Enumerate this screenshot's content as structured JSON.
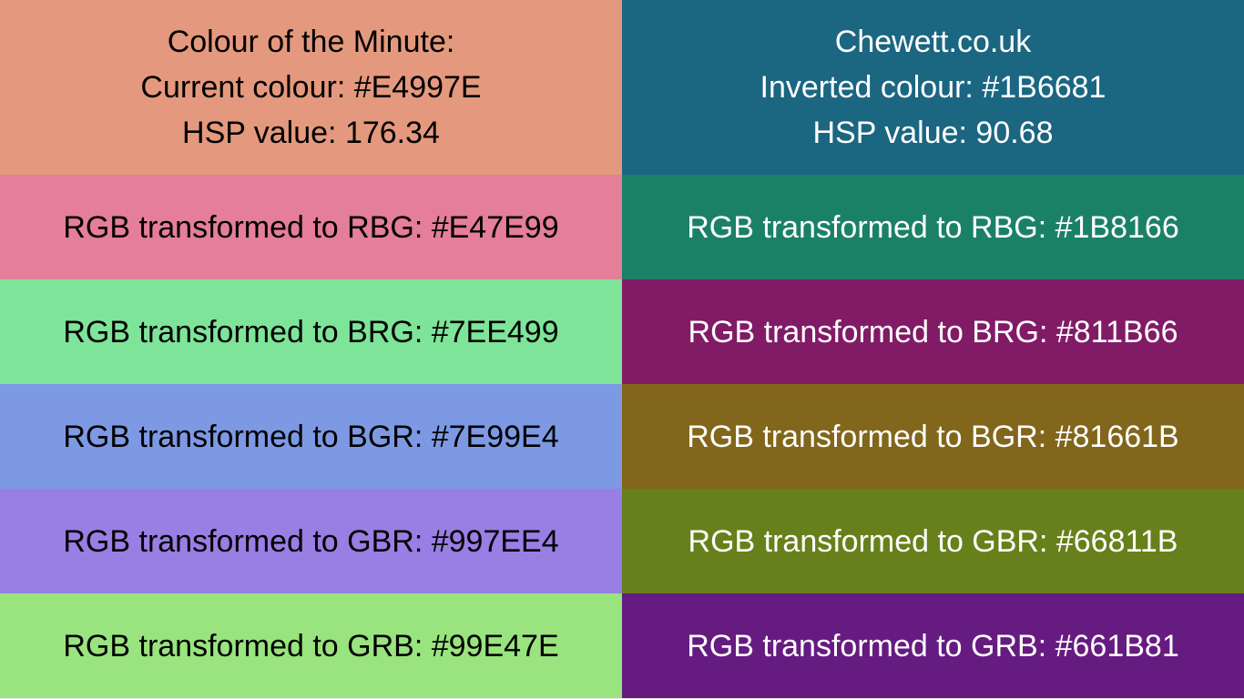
{
  "header": {
    "left": {
      "line1": "Colour of the Minute:",
      "line2": "Current colour: #E4997E",
      "line3": "HSP value: 176.34",
      "color": "#E4997E"
    },
    "right": {
      "line1": "Chewett.co.uk",
      "line2": "Inverted colour: #1B6681",
      "line3": "HSP value: 90.68",
      "color": "#1B6681"
    }
  },
  "rows": [
    {
      "left": {
        "label": "RGB transformed to RBG: #E47E99",
        "color": "#E47E99"
      },
      "right": {
        "label": "RGB transformed to RBG: #1B8166",
        "color": "#1B8166"
      }
    },
    {
      "left": {
        "label": "RGB transformed to BRG: #7EE499",
        "color": "#7EE499"
      },
      "right": {
        "label": "RGB transformed to BRG: #811B66",
        "color": "#811B66"
      }
    },
    {
      "left": {
        "label": "RGB transformed to BGR: #7E99E4",
        "color": "#7E99E4"
      },
      "right": {
        "label": "RGB transformed to BGR: #81661B",
        "color": "#81661B"
      }
    },
    {
      "left": {
        "label": "RGB transformed to GBR: #997EE4",
        "color": "#997EE4"
      },
      "right": {
        "label": "RGB transformed to GBR: #66811B",
        "color": "#66811B"
      }
    },
    {
      "left": {
        "label": "RGB transformed to GRB: #99E47E",
        "color": "#99E47E"
      },
      "right": {
        "label": "RGB transformed to GRB: #661B81",
        "color": "#661B81"
      }
    }
  ]
}
